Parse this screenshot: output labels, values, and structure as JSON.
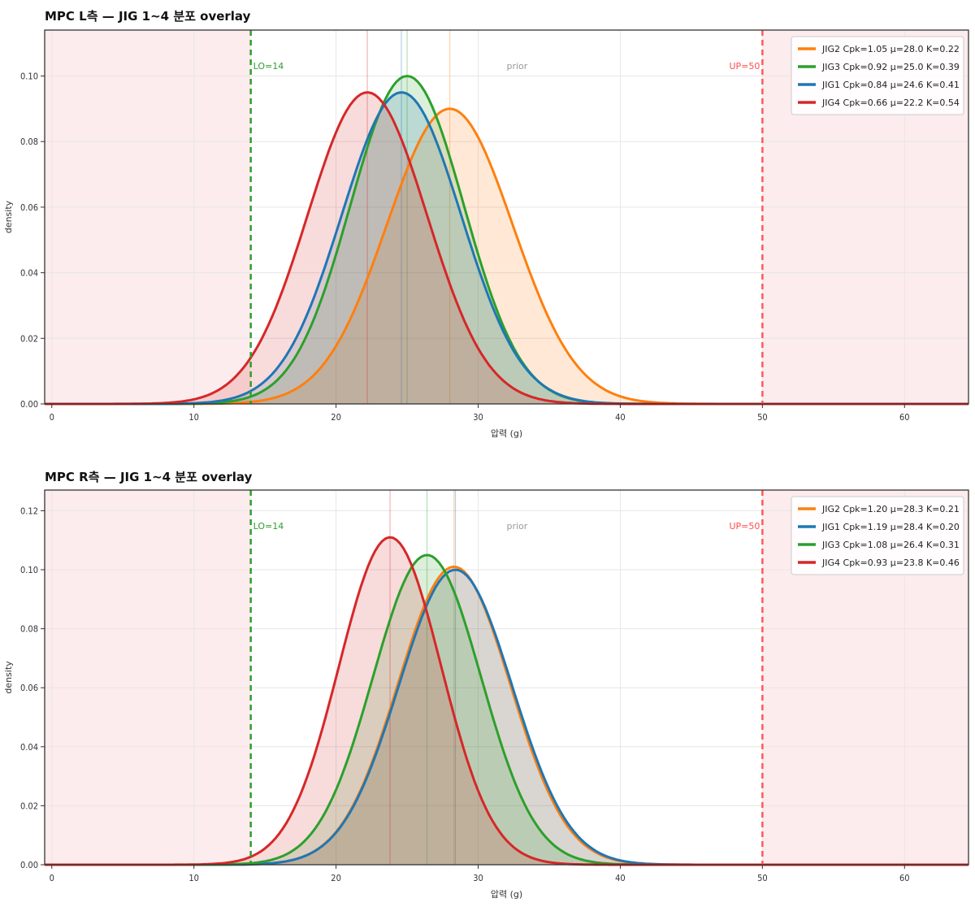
{
  "chart_data": [
    {
      "type": "area",
      "title": "MPC L측 — JIG 1~4 분포 overlay",
      "xlabel": "압력 (g)",
      "ylabel": "density",
      "xlim": [
        -0.5,
        64.5
      ],
      "ylim": [
        0,
        0.114
      ],
      "x_ticks": [
        0,
        10,
        20,
        30,
        40,
        50,
        60
      ],
      "y_ticks": [
        0.0,
        0.02,
        0.04,
        0.06,
        0.08,
        0.1
      ],
      "y_tick_labels": [
        "0.00",
        "0.02",
        "0.04",
        "0.06",
        "0.08",
        "0.10"
      ],
      "grid": true,
      "legend_position": "top-right",
      "spec_limits": {
        "lo": 14,
        "lo_label": "LO=14",
        "up": 50,
        "up_label": "UP=50"
      },
      "annotations": [
        {
          "text": "prior",
          "x": 32
        }
      ],
      "series": [
        {
          "name": "JIG2  Cpk=1.05  μ=28.0  K=0.22",
          "mean": 28.0,
          "peak": 0.09,
          "color": "#ff7f0e"
        },
        {
          "name": "JIG3  Cpk=0.92  μ=25.0  K=0.39",
          "mean": 25.0,
          "peak": 0.1,
          "color": "#2ca02c"
        },
        {
          "name": "JIG1  Cpk=0.84  μ=24.6  K=0.41",
          "mean": 24.6,
          "peak": 0.095,
          "color": "#1f77b4"
        },
        {
          "name": "JIG4  Cpk=0.66  μ=22.2  K=0.54",
          "mean": 22.2,
          "peak": 0.095,
          "color": "#d62728"
        }
      ]
    },
    {
      "type": "area",
      "title": "MPC R측 — JIG 1~4 분포 overlay",
      "xlabel": "압력 (g)",
      "ylabel": "density",
      "xlim": [
        -0.5,
        64.5
      ],
      "ylim": [
        0,
        0.127
      ],
      "x_ticks": [
        0,
        10,
        20,
        30,
        40,
        50,
        60
      ],
      "y_ticks": [
        0.0,
        0.02,
        0.04,
        0.06,
        0.08,
        0.1,
        0.12
      ],
      "y_tick_labels": [
        "0.00",
        "0.02",
        "0.04",
        "0.06",
        "0.08",
        "0.10",
        "0.12"
      ],
      "grid": true,
      "legend_position": "top-right",
      "spec_limits": {
        "lo": 14,
        "lo_label": "LO=14",
        "up": 50,
        "up_label": "UP=50"
      },
      "annotations": [
        {
          "text": "prior",
          "x": 32
        }
      ],
      "series": [
        {
          "name": "JIG2  Cpk=1.20  μ=28.3  K=0.21",
          "mean": 28.3,
          "peak": 0.101,
          "color": "#ff7f0e"
        },
        {
          "name": "JIG1  Cpk=1.19  μ=28.4  K=0.20",
          "mean": 28.4,
          "peak": 0.1,
          "color": "#1f77b4"
        },
        {
          "name": "JIG3  Cpk=1.08  μ=26.4  K=0.31",
          "mean": 26.4,
          "peak": 0.105,
          "color": "#2ca02c"
        },
        {
          "name": "JIG4  Cpk=0.93  μ=23.8  K=0.46",
          "mean": 23.8,
          "peak": 0.111,
          "color": "#d62728"
        }
      ]
    }
  ]
}
